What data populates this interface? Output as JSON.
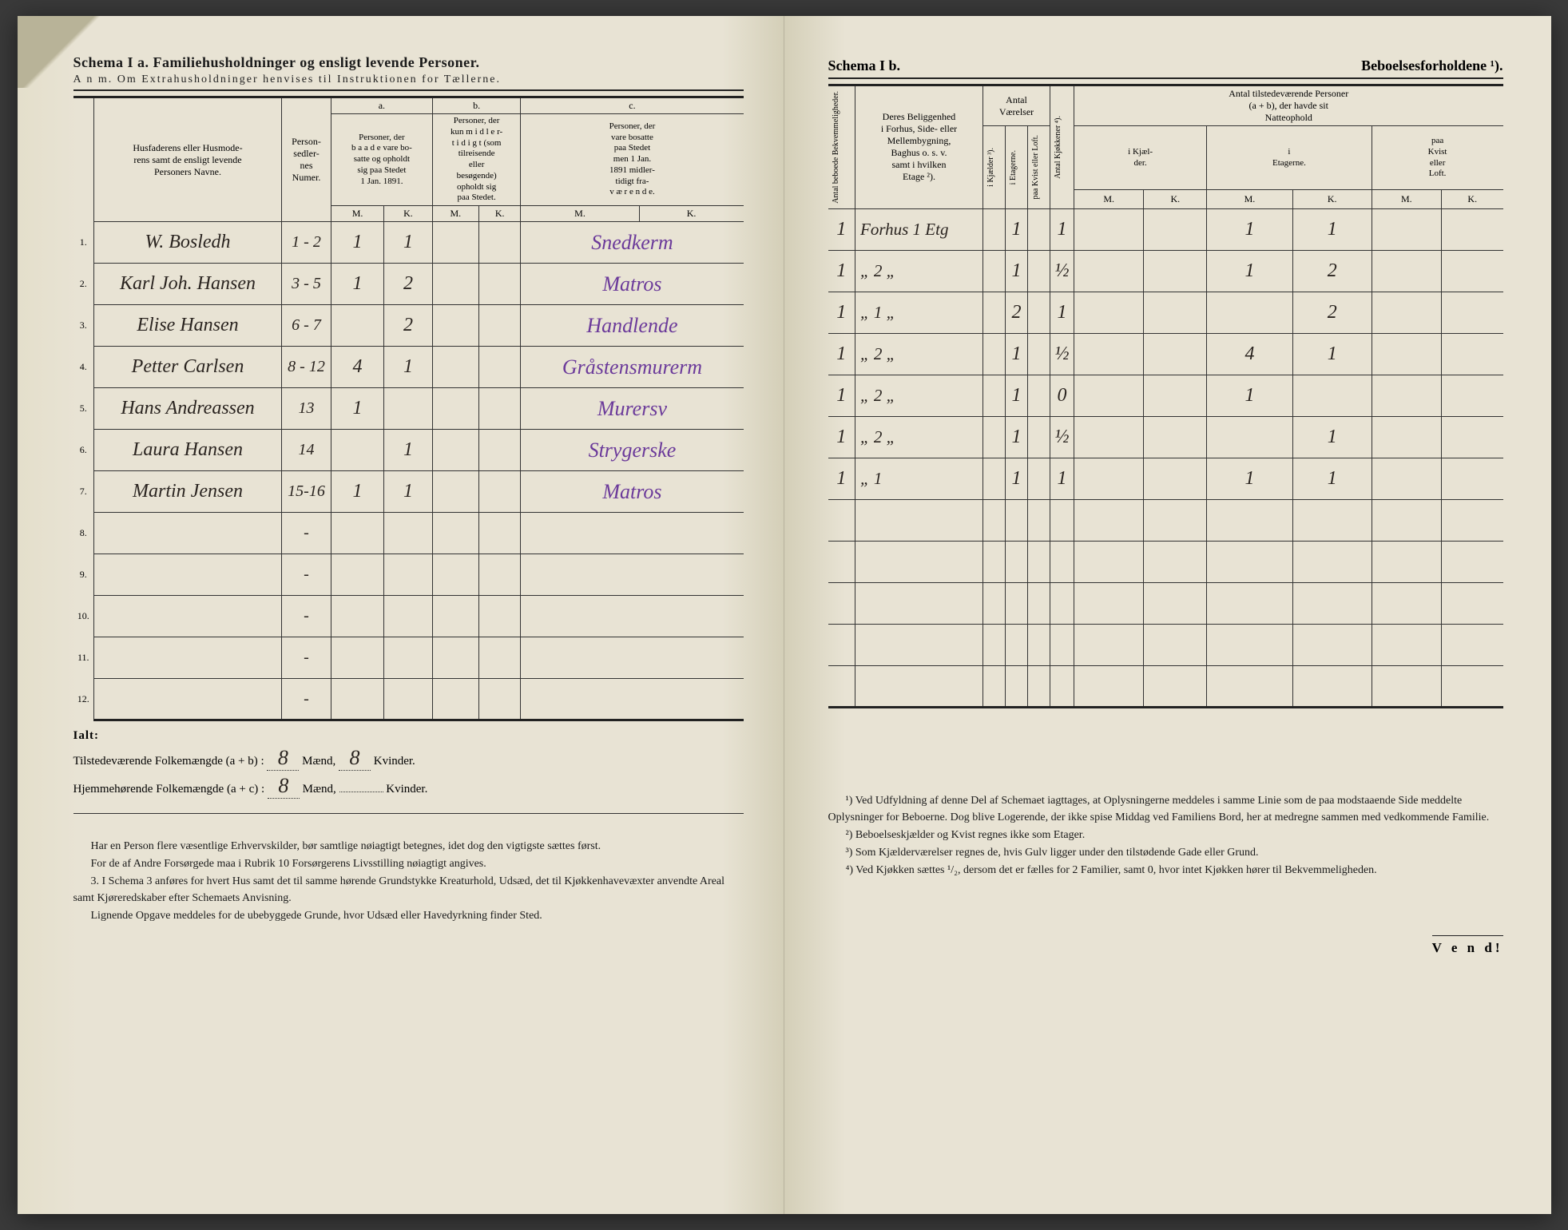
{
  "left": {
    "schemaTitle": "Schema I a.   Familiehusholdninger og ensligt levende Personer.",
    "anm": "A n m.  Om Extrahusholdninger henvises til Instruktionen for Tællerne.",
    "headers": {
      "householder": "Husfaderens eller Husmode-\nrens samt de ensligt levende\nPersoners Navne.",
      "personNum": "Person-\nsedler-\nnes\nNumer.",
      "a_label": "a.",
      "a_text": "Personer, der\nb a a d e vare bo-\nsatte og opholdt\nsig paa Stedet\n1 Jan. 1891.",
      "b_label": "b.",
      "b_text": "Personer, der\nkun m i d l e r-\nt i d i g t (som\ntilreisende\neller\nbesøgende)\nopholdt sig\npaa Stedet.",
      "c_label": "c.",
      "c_text": "Personer, der\nvare bosatte\npaa Stedet\nmen 1 Jan.\n1891 midler-\ntidigt fra-\nv æ r e n d e.",
      "M": "M.",
      "K": "K."
    },
    "rows": [
      {
        "n": "1.",
        "name": "W. Bosledh",
        "pnum": "1 - 2",
        "aM": "1",
        "aK": "1",
        "occ": "Snedkerm"
      },
      {
        "n": "2.",
        "name": "Karl Joh. Hansen",
        "pnum": "3 - 5",
        "aM": "1",
        "aK": "2",
        "occ": "Matros"
      },
      {
        "n": "3.",
        "name": "Elise Hansen",
        "pnum": "6 - 7",
        "aM": "",
        "aK": "2",
        "occ": "Handlende"
      },
      {
        "n": "4.",
        "name": "Petter Carlsen",
        "pnum": "8 - 12",
        "aM": "4",
        "aK": "1",
        "occ": "Gråstensmurerm"
      },
      {
        "n": "5.",
        "name": "Hans Andreassen",
        "pnum": "13",
        "aM": "1",
        "aK": "",
        "occ": "Murersv"
      },
      {
        "n": "6.",
        "name": "Laura Hansen",
        "pnum": "14",
        "aM": "",
        "aK": "1",
        "occ": "Strygerske"
      },
      {
        "n": "7.",
        "name": "Martin Jensen",
        "pnum": "15-16",
        "aM": "1",
        "aK": "1",
        "occ": "Matros"
      },
      {
        "n": "8."
      },
      {
        "n": "9."
      },
      {
        "n": "10."
      },
      {
        "n": "11."
      },
      {
        "n": "12."
      }
    ],
    "totals": {
      "ialt": "Ialt:",
      "line1_label": "Tilstedeværende Folkemængde (a + b) :",
      "line1_m": "8",
      "line1_m_unit": "Mænd,",
      "line1_k": "8",
      "line1_k_unit": "Kvinder.",
      "line2_label": "Hjemmehørende Folkemængde (a + c) :",
      "line2_m": "8",
      "line2_m_unit": "Mænd,",
      "line2_k": "",
      "line2_k_unit": "Kvinder."
    },
    "foot": [
      "Har en Person flere væsentlige Erhvervskilder, bør samtlige nøiagtigt betegnes, idet dog den vigtigste sættes først.",
      "For de af Andre Forsørgede maa i Rubrik 10 Forsørgerens Livsstilling nøiagtigt angives.",
      "3. I Schema 3 anføres for hvert Hus samt det til samme hørende Grund­stykke Kreaturhold, Udsæd, det til Kjøkkenhavevæxter anvendte Areal samt Kjøreredskaber efter Schemaets Anvisning.",
      "Lignende Opgave meddeles for de ubebyggede Grunde, hvor Udsæd eller Havedyrkning finder Sted."
    ]
  },
  "right": {
    "schemaTitle": "Schema I b.",
    "schemaTitle2": "Beboelsesforholdene ¹).",
    "headers": {
      "bekv": "Antal beboede\nBekvemmeligheder.",
      "belig": "Deres Beliggenhed\ni Forhus, Side- eller\nMellembygning,\nBaghus o. s. v.\nsamt i hvilken\nEtage ²).",
      "antalV": "Antal\nVærelser",
      "kjael": "i Kjælder ³).",
      "etag": "i Etagerne.",
      "kvist": "paa Kvist eller\nLoft.",
      "kjok": "Antal Kjøkkener ⁴).",
      "persTop": "Antal tilstedeværende Personer\n(a + b), der havde sit\nNatteophold",
      "p_k": "i Kjæl-\nder.",
      "p_e": "i\nEtagerne.",
      "p_l": "paa\nKvist\neller\nLoft.",
      "M": "M.",
      "K": "K."
    },
    "rows": [
      {
        "bekv": "1",
        "belig": "Forhus 1 Etg",
        "kj": "",
        "et": "1",
        "kv": "",
        "kk": "1",
        "peM": "1",
        "peK": "1"
      },
      {
        "bekv": "1",
        "belig": "„      2 „",
        "kj": "",
        "et": "1",
        "kv": "",
        "kk": "½",
        "peM": "1",
        "peK": "2"
      },
      {
        "bekv": "1",
        "belig": "„      1 „",
        "kj": "",
        "et": "2",
        "kv": "",
        "kk": "1",
        "peM": "",
        "peK": "2"
      },
      {
        "bekv": "1",
        "belig": "„      2 „",
        "kj": "",
        "et": "1",
        "kv": "",
        "kk": "½",
        "peM": "4",
        "peK": "1"
      },
      {
        "bekv": "1",
        "belig": "„      2 „",
        "kj": "",
        "et": "1",
        "kv": "",
        "kk": "0",
        "peM": "1",
        "peK": ""
      },
      {
        "bekv": "1",
        "belig": "„      2 „",
        "kj": "",
        "et": "1",
        "kv": "",
        "kk": "½",
        "peM": "",
        "peK": "1"
      },
      {
        "bekv": "1",
        "belig": "„      1",
        "kj": "",
        "et": "1",
        "kv": "",
        "kk": "1",
        "peM": "1",
        "peK": "1"
      },
      {},
      {},
      {},
      {},
      {}
    ],
    "foot": [
      "¹) Ved Udfyldning af denne Del af Schemaet iagttages, at Oplysningerne meddeles i samme Linie som de paa modstaaende Side meddelte Oplysninger for Beboerne. Dog blive Logerende, der ikke spise Middag ved Familiens Bord, her at medregne sammen med vedkommende Familie.",
      "²) Beboelseskjælder og Kvist regnes ikke som Etager.",
      "³) Som Kjælderværelser regnes de, hvis Gulv ligger under den tilstødende Gade eller Grund.",
      "⁴) Ved Kjøkken sættes ¹/₂, dersom det er fælles for 2 Familier, samt 0, hvor intet Kjøkken hører til Bekvemmeligheden."
    ],
    "vend": "V e n d!"
  }
}
